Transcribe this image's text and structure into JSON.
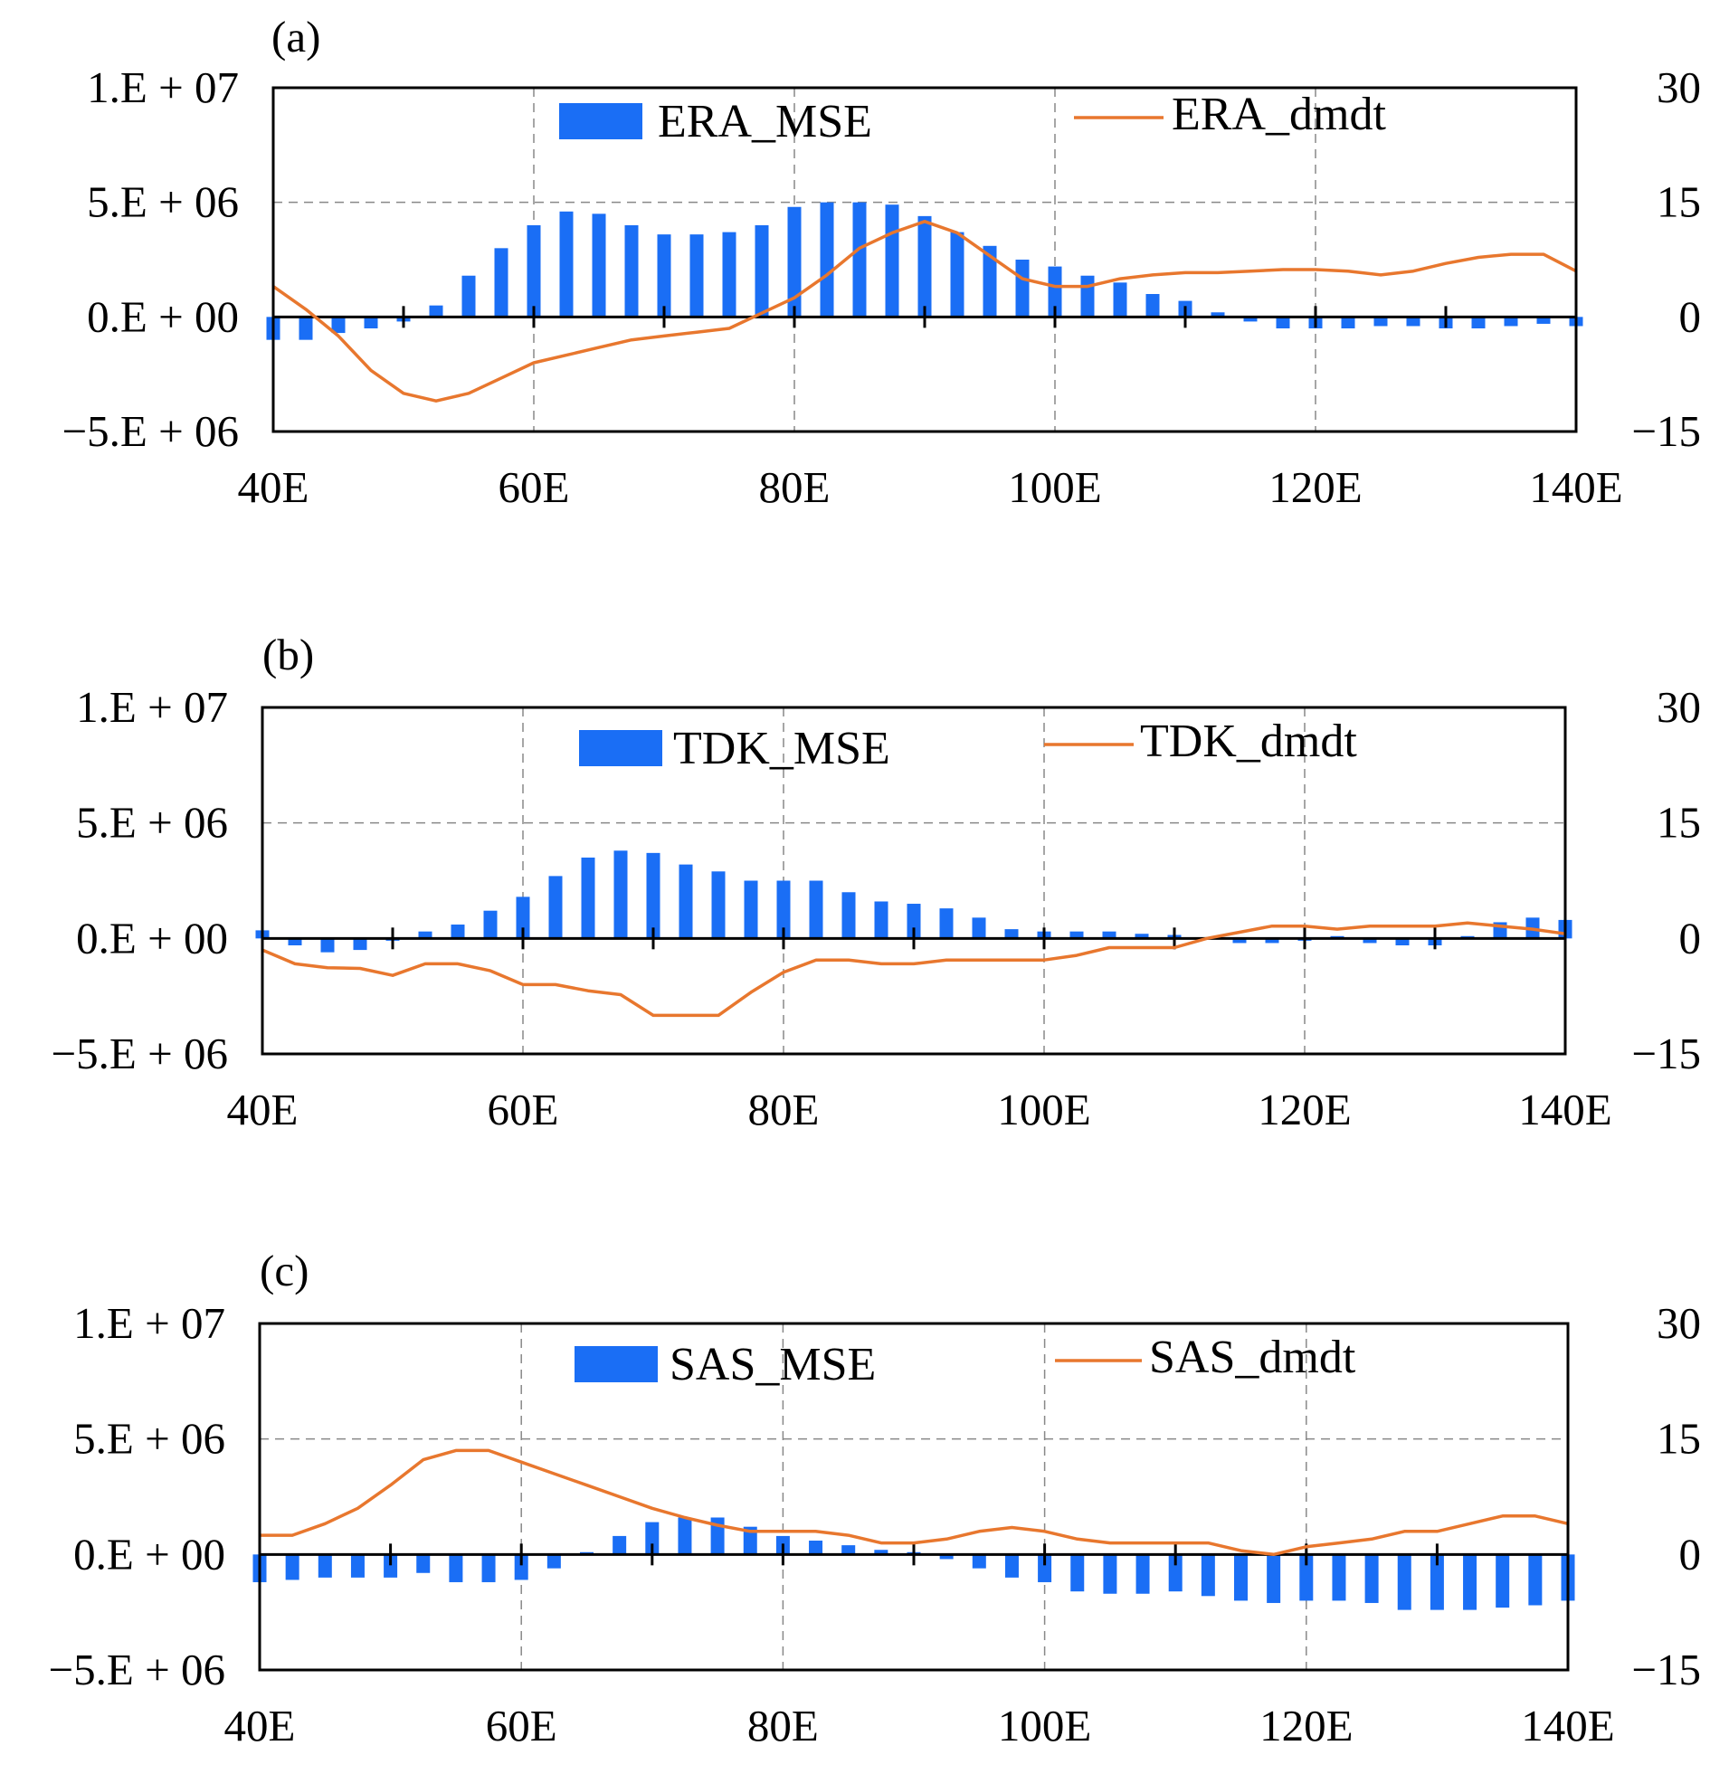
{
  "chart_data": [
    {
      "panel_label": "(a)",
      "type": "bar+line",
      "x": [
        40.0,
        42.5,
        45.0,
        47.5,
        50.0,
        52.5,
        55.0,
        57.5,
        60.0,
        62.5,
        65.0,
        67.5,
        70.0,
        72.5,
        75.0,
        77.5,
        80.0,
        82.5,
        85.0,
        87.5,
        90.0,
        92.5,
        95.0,
        97.5,
        100.0,
        102.5,
        105.0,
        107.5,
        110.0,
        112.5,
        115.0,
        117.5,
        120.0,
        122.5,
        125.0,
        127.5,
        130.0,
        132.5,
        135.0,
        137.5,
        140.0
      ],
      "x_ticks": [
        "40E",
        "60E",
        "80E",
        "100E",
        "120E",
        "140E"
      ],
      "x_tick_values": [
        40,
        60,
        80,
        100,
        120,
        140
      ],
      "y_left": {
        "ticks": [
          "1.E + 07",
          "5.E + 06",
          "0.E + 00",
          "−5.E + 06"
        ],
        "range": [
          -5000000,
          10000000
        ]
      },
      "y_right": {
        "ticks": [
          "30",
          "15",
          "0",
          "−15"
        ],
        "range": [
          -15,
          30
        ]
      },
      "series": [
        {
          "name": "ERA_MSE",
          "type": "bar",
          "axis": "left",
          "color": "#1a6ef5",
          "values": [
            -1000000,
            -1000000,
            -700000,
            -500000,
            -200000,
            500000,
            1800000,
            3000000,
            4000000,
            4600000,
            4500000,
            4000000,
            3600000,
            3600000,
            3700000,
            4000000,
            4800000,
            5000000,
            5000000,
            4900000,
            4400000,
            3700000,
            3100000,
            2500000,
            2200000,
            1800000,
            1500000,
            1000000,
            700000,
            200000,
            -200000,
            -500000,
            -500000,
            -500000,
            -400000,
            -400000,
            -500000,
            -500000,
            -400000,
            -300000,
            -400000
          ]
        },
        {
          "name": "ERA_dmdt",
          "type": "line",
          "axis": "right",
          "color": "#e8772e",
          "values": [
            4,
            1,
            -2.5,
            -7,
            -10,
            -11,
            -10,
            -8,
            -6,
            -5,
            -4,
            -3,
            -2.5,
            -2,
            -1.5,
            0.5,
            2.5,
            5.5,
            9,
            11,
            12.5,
            11,
            8,
            5,
            4,
            4,
            5,
            5.5,
            5.8,
            5.8,
            6,
            6.2,
            6.2,
            6,
            5.5,
            6,
            7,
            7.8,
            8.2,
            8.2,
            6
          ]
        }
      ]
    },
    {
      "panel_label": "(b)",
      "type": "bar+line",
      "x": [
        40.0,
        42.5,
        45.0,
        47.5,
        50.0,
        52.5,
        55.0,
        57.5,
        60.0,
        62.5,
        65.0,
        67.5,
        70.0,
        72.5,
        75.0,
        77.5,
        80.0,
        82.5,
        85.0,
        87.5,
        90.0,
        92.5,
        95.0,
        97.5,
        100.0,
        102.5,
        105.0,
        107.5,
        110.0,
        112.5,
        115.0,
        117.5,
        120.0,
        122.5,
        125.0,
        127.5,
        130.0,
        132.5,
        135.0,
        137.5,
        140.0
      ],
      "x_ticks": [
        "40E",
        "60E",
        "80E",
        "100E",
        "120E",
        "140E"
      ],
      "x_tick_values": [
        40,
        60,
        80,
        100,
        120,
        140
      ],
      "y_left": {
        "ticks": [
          "1.E + 07",
          "5.E + 06",
          "0.E + 00",
          "−5.E + 06"
        ],
        "range": [
          -5000000,
          10000000
        ]
      },
      "y_right": {
        "ticks": [
          "30",
          "15",
          "0",
          "−15"
        ],
        "range": [
          -15,
          30
        ]
      },
      "series": [
        {
          "name": "TDK_MSE",
          "type": "bar",
          "axis": "left",
          "color": "#1a6ef5",
          "values": [
            350000,
            -300000,
            -600000,
            -500000,
            -100000,
            300000,
            600000,
            1200000,
            1800000,
            2700000,
            3500000,
            3800000,
            3700000,
            3200000,
            2900000,
            2500000,
            2500000,
            2500000,
            2000000,
            1600000,
            1500000,
            1300000,
            900000,
            400000,
            300000,
            300000,
            300000,
            200000,
            150000,
            0,
            -200000,
            -200000,
            -100000,
            100000,
            -200000,
            -300000,
            -300000,
            100000,
            700000,
            900000,
            800000
          ]
        },
        {
          "name": "TDK_dmdt",
          "type": "line",
          "axis": "right",
          "color": "#e8772e",
          "values": [
            -1.5,
            -3.3,
            -3.8,
            -3.9,
            -4.8,
            -3.3,
            -3.3,
            -4.2,
            -6,
            -6,
            -6.8,
            -7.3,
            -10,
            -10,
            -10,
            -7,
            -4.4,
            -2.8,
            -2.8,
            -3.3,
            -3.3,
            -2.8,
            -2.8,
            -2.8,
            -2.8,
            -2.2,
            -1.2,
            -1.2,
            -1.2,
            0,
            0.8,
            1.6,
            1.6,
            1.2,
            1.6,
            1.6,
            1.6,
            2,
            1.6,
            1.2,
            0.6
          ]
        }
      ]
    },
    {
      "panel_label": "(c)",
      "type": "bar+line",
      "x": [
        40.0,
        42.5,
        45.0,
        47.5,
        50.0,
        52.5,
        55.0,
        57.5,
        60.0,
        62.5,
        65.0,
        67.5,
        70.0,
        72.5,
        75.0,
        77.5,
        80.0,
        82.5,
        85.0,
        87.5,
        90.0,
        92.5,
        95.0,
        97.5,
        100.0,
        102.5,
        105.0,
        107.5,
        110.0,
        112.5,
        115.0,
        117.5,
        120.0,
        122.5,
        125.0,
        127.5,
        130.0,
        132.5,
        135.0,
        137.5,
        140.0
      ],
      "x_ticks": [
        "40E",
        "60E",
        "80E",
        "100E",
        "120E",
        "140E"
      ],
      "x_tick_values": [
        40,
        60,
        80,
        100,
        120,
        140
      ],
      "y_left": {
        "ticks": [
          "1.E + 07",
          "5.E + 06",
          "0.E + 00",
          "−5.E + 06"
        ],
        "range": [
          -5000000,
          10000000
        ]
      },
      "y_right": {
        "ticks": [
          "30",
          "15",
          "0",
          "−15"
        ],
        "range": [
          -15,
          30
        ]
      },
      "series": [
        {
          "name": "SAS_MSE",
          "type": "bar",
          "axis": "left",
          "color": "#1a6ef5",
          "values": [
            -1200000,
            -1100000,
            -1000000,
            -1000000,
            -1000000,
            -800000,
            -1200000,
            -1200000,
            -1100000,
            -600000,
            100000,
            800000,
            1400000,
            1600000,
            1600000,
            1200000,
            800000,
            600000,
            400000,
            200000,
            100000,
            -200000,
            -600000,
            -1000000,
            -1200000,
            -1600000,
            -1700000,
            -1700000,
            -1600000,
            -1800000,
            -2000000,
            -2100000,
            -2000000,
            -2000000,
            -2100000,
            -2400000,
            -2400000,
            -2400000,
            -2300000,
            -2200000,
            -2000000
          ]
        },
        {
          "name": "SAS_dmdt",
          "type": "line",
          "axis": "right",
          "color": "#e8772e",
          "values": [
            2.5,
            2.5,
            4,
            6,
            9,
            12.3,
            13.5,
            13.5,
            12,
            10.5,
            9,
            7.5,
            6,
            4.8,
            3.8,
            3,
            3,
            3,
            2.5,
            1.5,
            1.5,
            2,
            3,
            3.5,
            3,
            2,
            1.5,
            1.5,
            1.5,
            1.5,
            0.5,
            0,
            1,
            1.5,
            2,
            3,
            3,
            4,
            5,
            5,
            4
          ]
        }
      ]
    }
  ]
}
